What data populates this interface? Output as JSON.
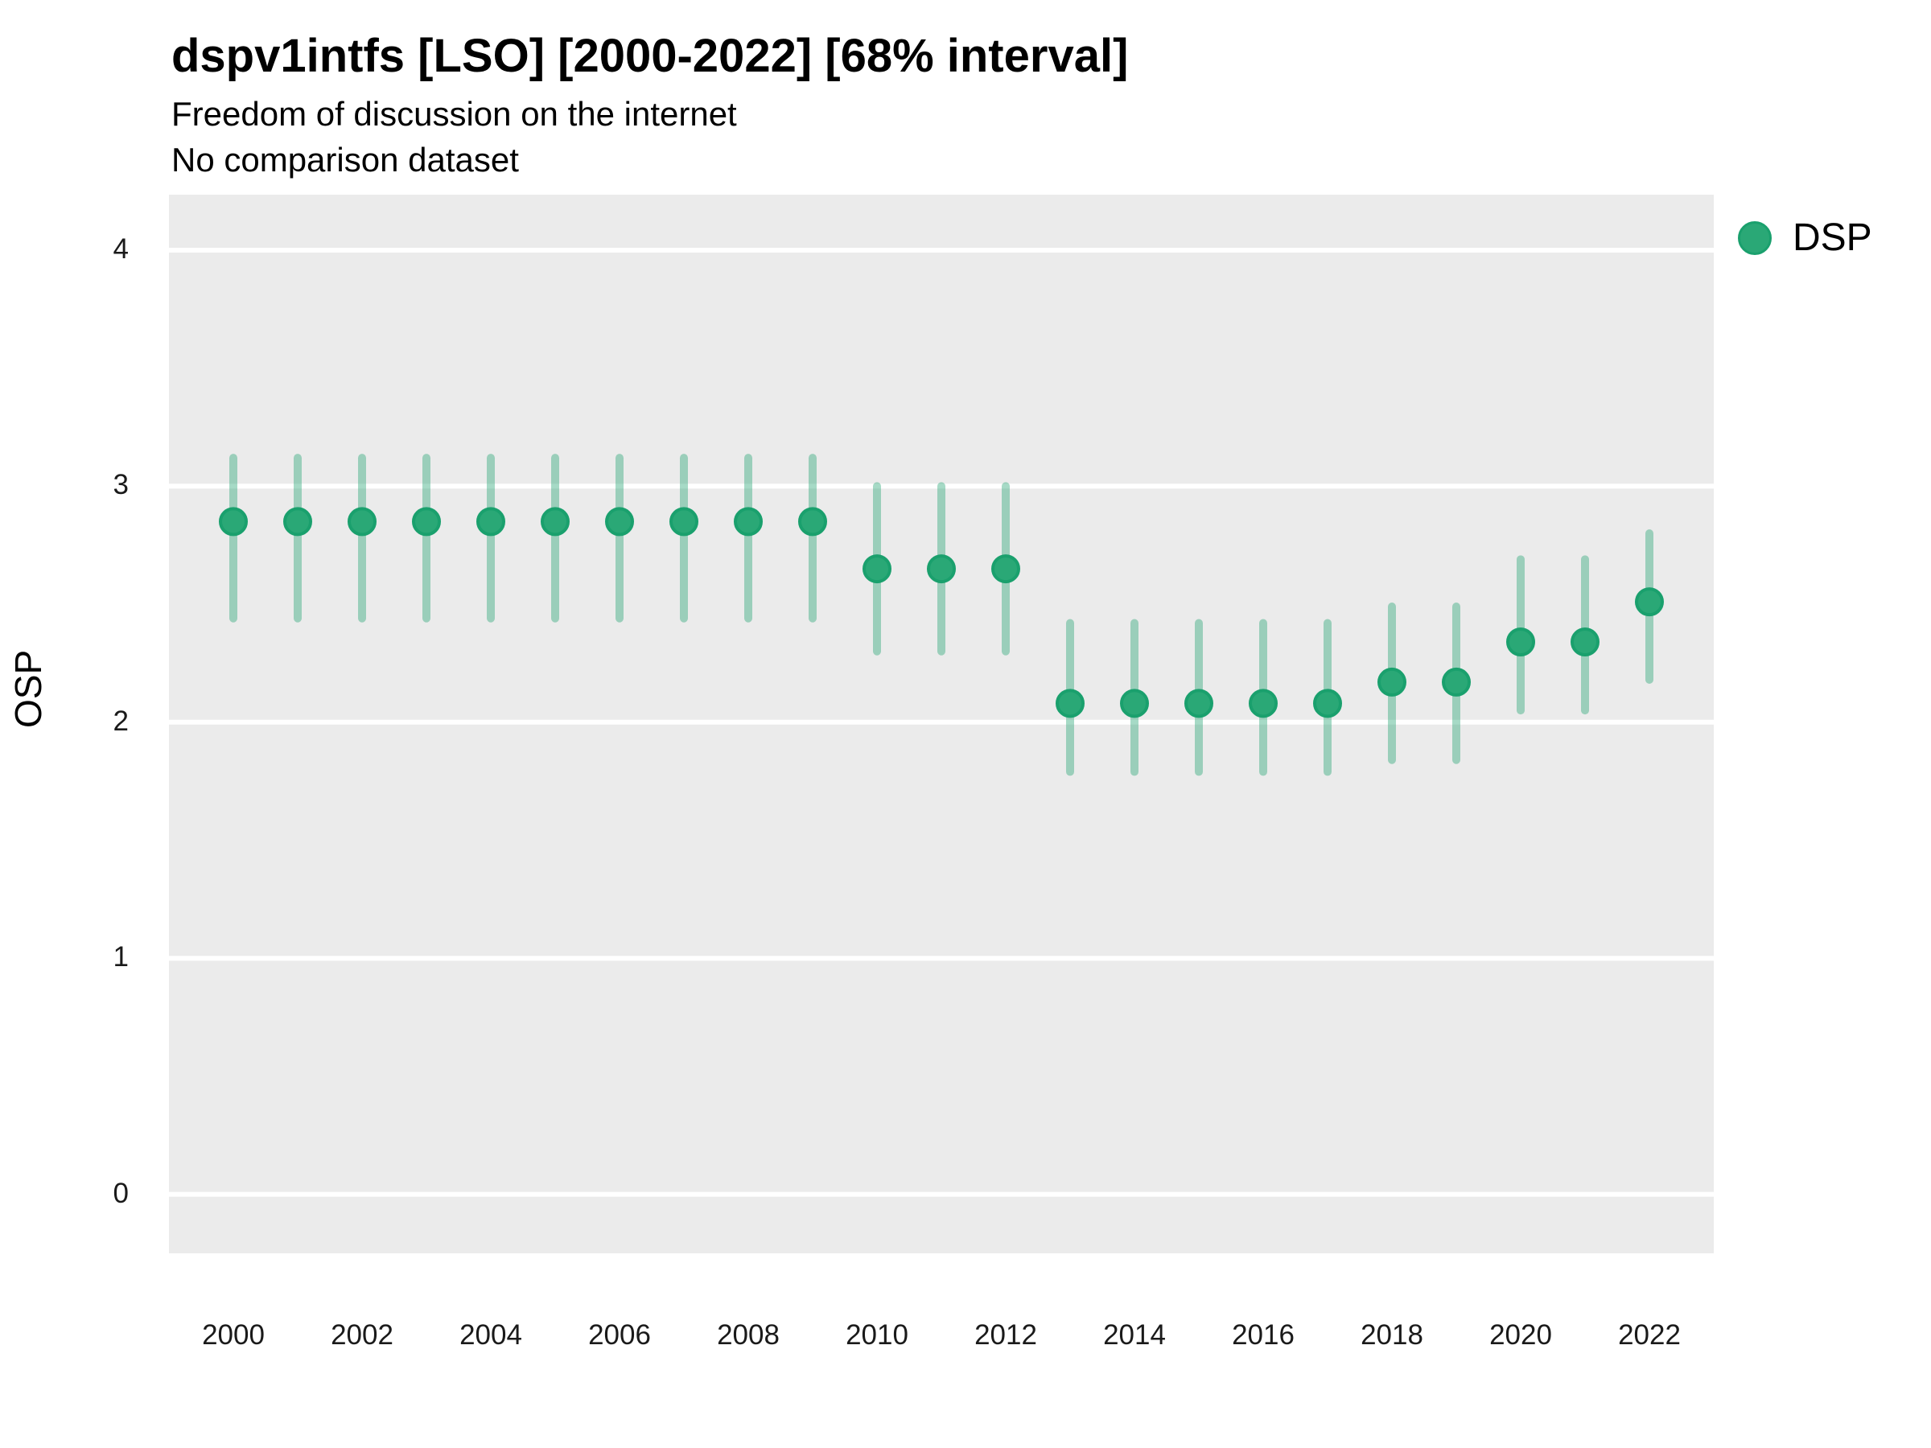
{
  "header": {
    "title": "dspv1intfs [LSO] [2000-2022] [68% interval]",
    "subtitle": "Freedom of discussion on the internet",
    "subtitle2": "No comparison dataset"
  },
  "legend": {
    "label": "DSP"
  },
  "chart_data": {
    "type": "scatter",
    "title": "dspv1intfs [LSO] [2000-2022] [68% interval]",
    "subtitle": "Freedom of discussion on the internet",
    "note": "No comparison dataset",
    "xlabel": "",
    "ylabel": "OSP",
    "interval_level": "68%",
    "xlim": [
      1999,
      2023
    ],
    "ylim": [
      -0.25,
      4.235
    ],
    "x_ticks": [
      2000,
      2002,
      2004,
      2006,
      2008,
      2010,
      2012,
      2014,
      2016,
      2018,
      2020,
      2022
    ],
    "y_ticks": [
      0,
      1,
      2,
      3,
      4
    ],
    "grid": "horizontal-major-only",
    "legend_position": "top-right",
    "series": [
      {
        "name": "DSP",
        "points": [
          {
            "year": 2000,
            "est": 2.85,
            "lo": 2.44,
            "hi": 3.12
          },
          {
            "year": 2001,
            "est": 2.85,
            "lo": 2.44,
            "hi": 3.12
          },
          {
            "year": 2002,
            "est": 2.85,
            "lo": 2.44,
            "hi": 3.12
          },
          {
            "year": 2003,
            "est": 2.85,
            "lo": 2.44,
            "hi": 3.12
          },
          {
            "year": 2004,
            "est": 2.85,
            "lo": 2.44,
            "hi": 3.12
          },
          {
            "year": 2005,
            "est": 2.85,
            "lo": 2.44,
            "hi": 3.12
          },
          {
            "year": 2006,
            "est": 2.85,
            "lo": 2.44,
            "hi": 3.12
          },
          {
            "year": 2007,
            "est": 2.85,
            "lo": 2.44,
            "hi": 3.12
          },
          {
            "year": 2008,
            "est": 2.85,
            "lo": 2.44,
            "hi": 3.12
          },
          {
            "year": 2009,
            "est": 2.85,
            "lo": 2.44,
            "hi": 3.12
          },
          {
            "year": 2010,
            "est": 2.65,
            "lo": 2.3,
            "hi": 3.0
          },
          {
            "year": 2011,
            "est": 2.65,
            "lo": 2.3,
            "hi": 3.0
          },
          {
            "year": 2012,
            "est": 2.65,
            "lo": 2.3,
            "hi": 3.0
          },
          {
            "year": 2013,
            "est": 2.08,
            "lo": 1.79,
            "hi": 2.42
          },
          {
            "year": 2014,
            "est": 2.08,
            "lo": 1.79,
            "hi": 2.42
          },
          {
            "year": 2015,
            "est": 2.08,
            "lo": 1.79,
            "hi": 2.42
          },
          {
            "year": 2016,
            "est": 2.08,
            "lo": 1.79,
            "hi": 2.42
          },
          {
            "year": 2017,
            "est": 2.08,
            "lo": 1.79,
            "hi": 2.42
          },
          {
            "year": 2018,
            "est": 2.17,
            "lo": 1.84,
            "hi": 2.49
          },
          {
            "year": 2019,
            "est": 2.17,
            "lo": 1.84,
            "hi": 2.49
          },
          {
            "year": 2020,
            "est": 2.34,
            "lo": 2.05,
            "hi": 2.69
          },
          {
            "year": 2021,
            "est": 2.34,
            "lo": 2.05,
            "hi": 2.69
          },
          {
            "year": 2022,
            "est": 2.51,
            "lo": 2.18,
            "hi": 2.8
          }
        ]
      }
    ],
    "colors": {
      "point": "#2aa876",
      "point_stroke": "#1aa06d",
      "interval": "#2aa876",
      "interval_opacity": 0.42,
      "panel_bg": "#ebebeb",
      "grid": "#ffffff",
      "tick_text": "#1a1a1a"
    }
  }
}
